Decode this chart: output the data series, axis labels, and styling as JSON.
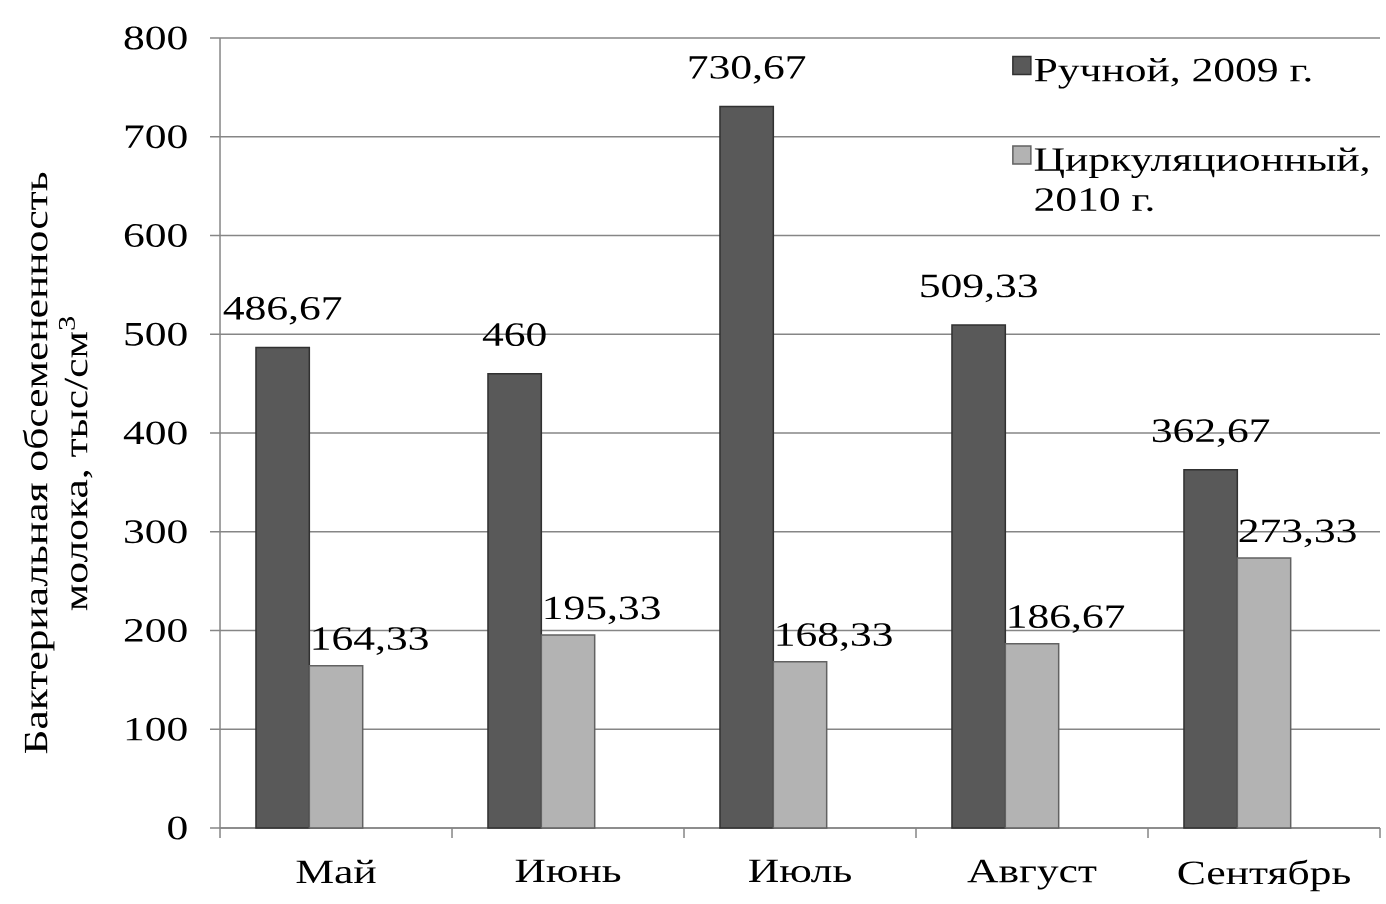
{
  "chart_data": {
    "type": "bar",
    "ylabel": "Бактериальная обсемененность молока, тыс/см$^{3}$",
    "categories": [
      "Май",
      "Июнь",
      "Июль",
      "Август",
      "Сентябрь"
    ],
    "series": [
      {
        "name": "Ручной, 2009 г.",
        "color": "#595959",
        "values": [
          486.67,
          460,
          730.67,
          509.33,
          362.67
        ],
        "value_labels": [
          "486,67",
          "460",
          "730,67",
          "509,33",
          "362,67"
        ]
      },
      {
        "name": "Циркуляционный, 2010 г.",
        "color": "#b3b3b3",
        "values": [
          164.33,
          195.33,
          168.33,
          186.67,
          273.33
        ],
        "value_labels": [
          "164,33",
          "195,33",
          "168,33",
          "186,67",
          "273,33"
        ]
      }
    ],
    "ylim": [
      0,
      800
    ],
    "yticks": [
      0,
      100,
      200,
      300,
      400,
      500,
      600,
      700,
      800
    ],
    "grid": "y",
    "legend": "top right"
  }
}
